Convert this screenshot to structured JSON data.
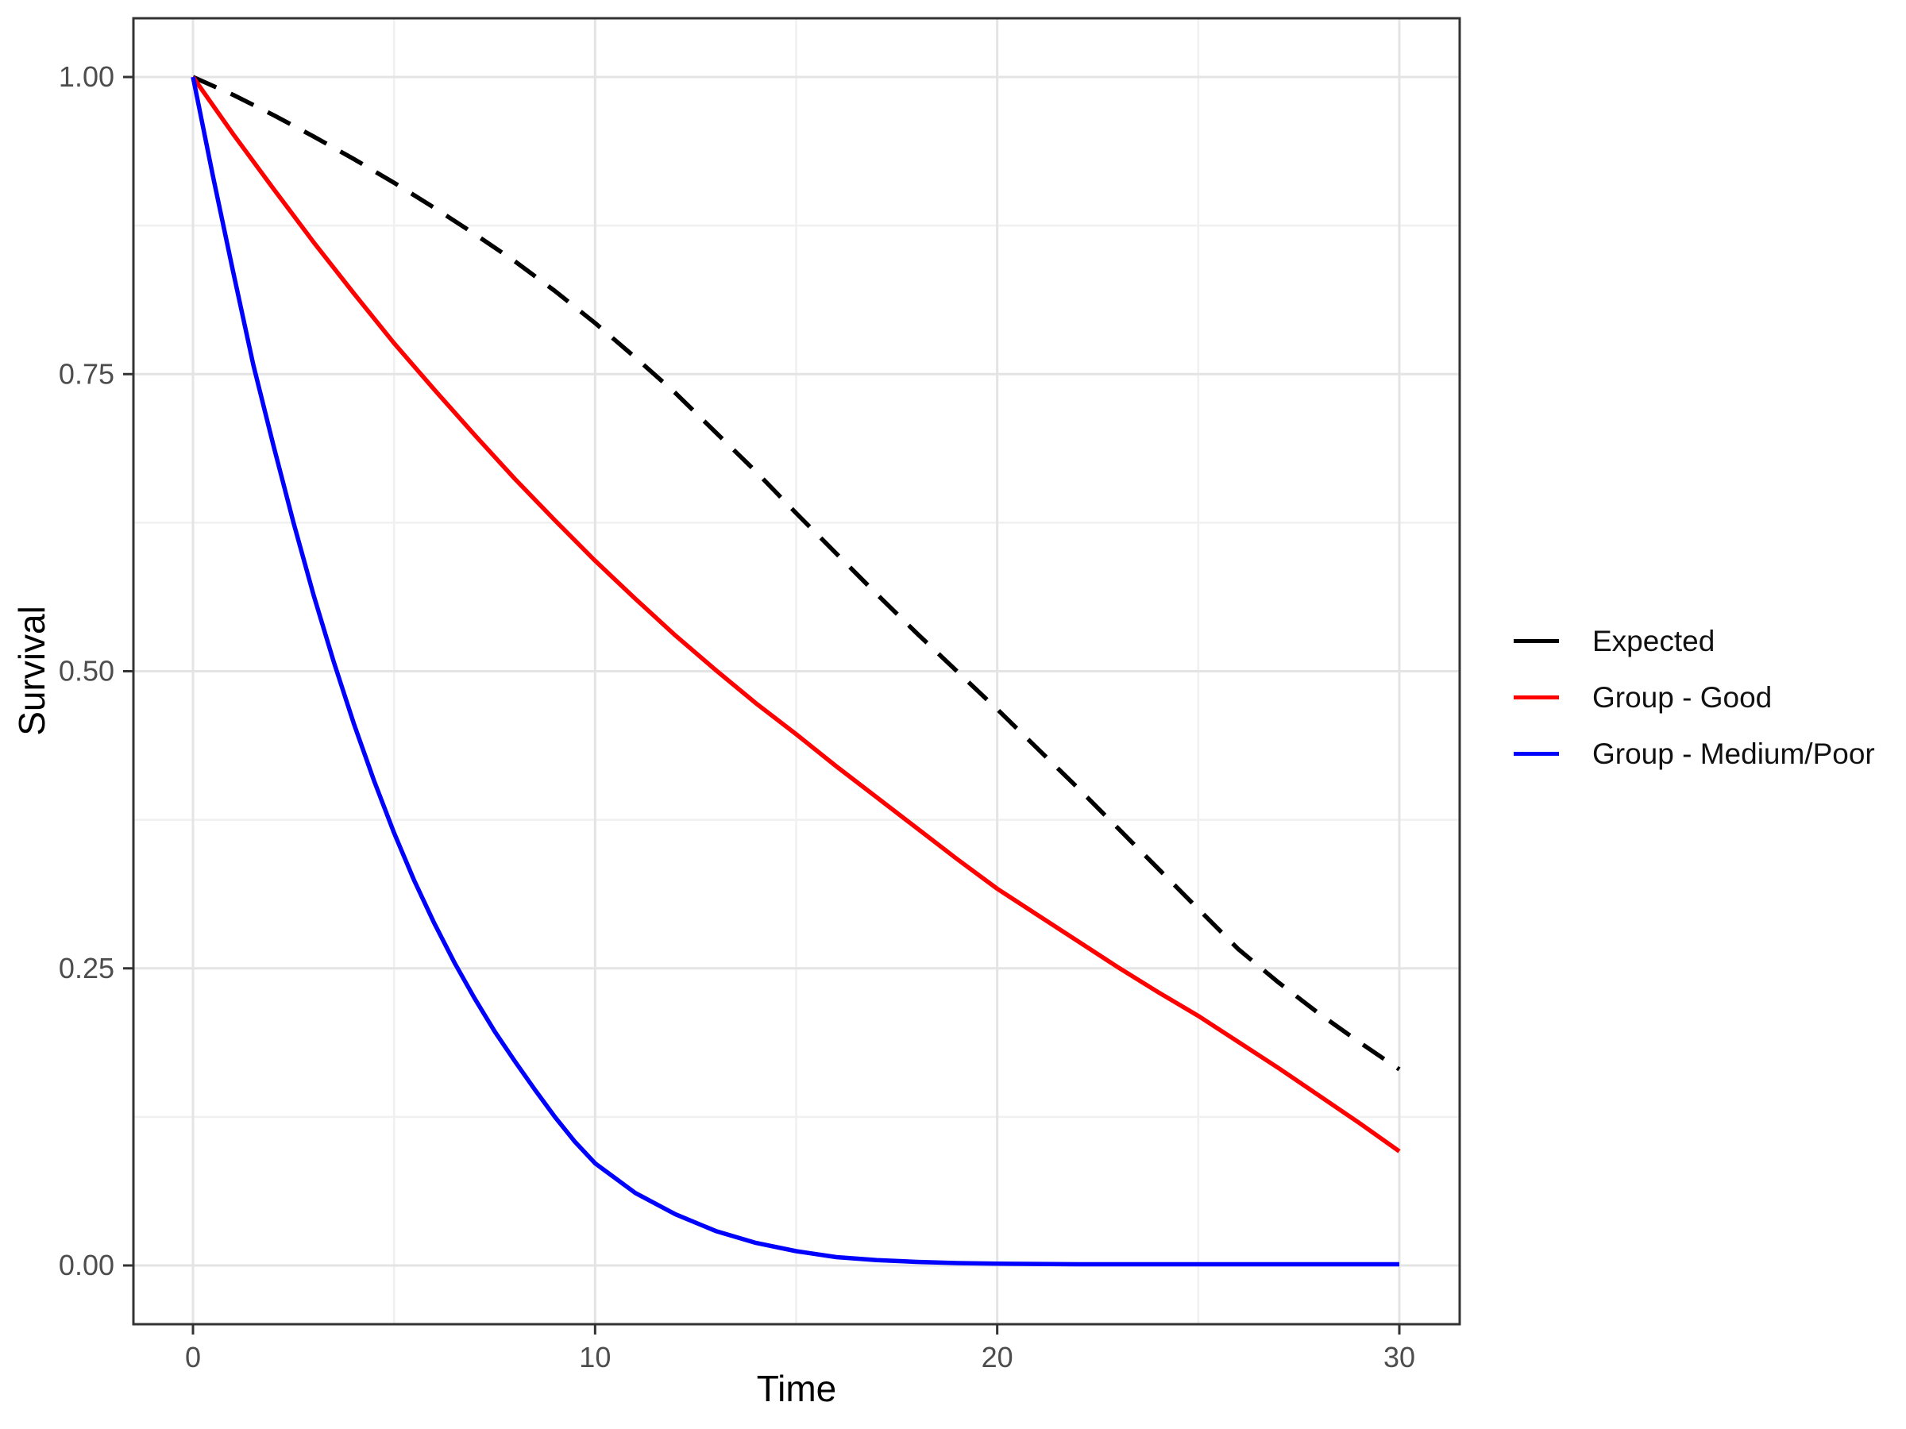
{
  "chart_data": {
    "type": "line",
    "title": "",
    "xlabel": "Time",
    "ylabel": "Survival",
    "xlim": [
      -1.5,
      31.5
    ],
    "ylim": [
      -0.05,
      1.05
    ],
    "grid": "major and minor gridlines, light grey on white panel, dark panel border",
    "legend_position": "right-center",
    "x_ticks": [
      0,
      10,
      20,
      30
    ],
    "x_tick_labels": [
      "0",
      "10",
      "20",
      "30"
    ],
    "x_minor_ticks": [
      5,
      15,
      25
    ],
    "y_ticks": [
      0,
      0.25,
      0.5,
      0.75,
      1
    ],
    "y_tick_labels": [
      "0.00",
      "0.25",
      "0.50",
      "0.75",
      "1.00"
    ],
    "y_minor_ticks": [
      0.125,
      0.375,
      0.625,
      0.875
    ],
    "series": [
      {
        "id": "expected",
        "name": "Expected",
        "color": "#000000",
        "dash": "dashed",
        "x": [
          0,
          1,
          2,
          3,
          4,
          5,
          6,
          7,
          8,
          9,
          10,
          11,
          12,
          13,
          14,
          15,
          16,
          17,
          18,
          19,
          20,
          21,
          22,
          23,
          24,
          25,
          26,
          27,
          28,
          29,
          30
        ],
        "y": [
          1.0,
          0.985,
          0.968,
          0.95,
          0.931,
          0.911,
          0.89,
          0.868,
          0.845,
          0.82,
          0.793,
          0.764,
          0.734,
          0.701,
          0.668,
          0.633,
          0.599,
          0.565,
          0.532,
          0.5,
          0.468,
          0.435,
          0.402,
          0.368,
          0.334,
          0.3,
          0.266,
          0.238,
          0.212,
          0.188,
          0.165
        ]
      },
      {
        "id": "group-good",
        "name": "Group - Good",
        "color": "#FF0000",
        "dash": "solid",
        "x": [
          0,
          1,
          2,
          3,
          4,
          5,
          6,
          7,
          8,
          9,
          10,
          11,
          12,
          13,
          14,
          15,
          16,
          17,
          18,
          19,
          20,
          21,
          22,
          23,
          24,
          25,
          26,
          27,
          28,
          29,
          30
        ],
        "y": [
          1.0,
          0.952,
          0.906,
          0.861,
          0.818,
          0.776,
          0.737,
          0.699,
          0.662,
          0.627,
          0.593,
          0.561,
          0.53,
          0.501,
          0.473,
          0.447,
          0.42,
          0.394,
          0.368,
          0.342,
          0.317,
          0.295,
          0.273,
          0.251,
          0.23,
          0.21,
          0.188,
          0.166,
          0.143,
          0.12,
          0.096
        ]
      },
      {
        "id": "group-medium-poor",
        "name": "Group - Medium/Poor",
        "color": "#0000FF",
        "dash": "solid",
        "x": [
          0,
          0.5,
          1,
          1.5,
          2,
          2.5,
          3,
          3.5,
          4,
          4.5,
          5,
          5.5,
          6,
          6.5,
          7,
          7.5,
          8,
          8.5,
          9,
          9.5,
          10,
          11,
          12,
          13,
          14,
          15,
          16,
          17,
          18,
          19,
          20,
          22,
          24,
          26,
          28,
          30
        ],
        "y": [
          1.0,
          0.916,
          0.836,
          0.758,
          0.69,
          0.625,
          0.564,
          0.508,
          0.456,
          0.408,
          0.364,
          0.324,
          0.288,
          0.255,
          0.225,
          0.197,
          0.172,
          0.148,
          0.125,
          0.104,
          0.086,
          0.061,
          0.043,
          0.029,
          0.019,
          0.012,
          0.007,
          0.0045,
          0.003,
          0.002,
          0.0015,
          0.001,
          0.001,
          0.001,
          0.001,
          0.001
        ]
      }
    ]
  },
  "legend": {
    "items": [
      {
        "label": "Expected",
        "color": "#000000"
      },
      {
        "label": "Group - Good",
        "color": "#FF0000"
      },
      {
        "label": "Group - Medium/Poor",
        "color": "#0000FF"
      }
    ]
  },
  "colors": {
    "background": "#FFFFFF",
    "panel_background": "#FFFFFF",
    "panel_border": "#333333",
    "grid_major": "#E4E4E4",
    "grid_minor": "#F0F0F0",
    "tick": "#333333",
    "tick_label": "#4D4D4D",
    "axis_title": "#000000",
    "legend_text": "#111111"
  }
}
